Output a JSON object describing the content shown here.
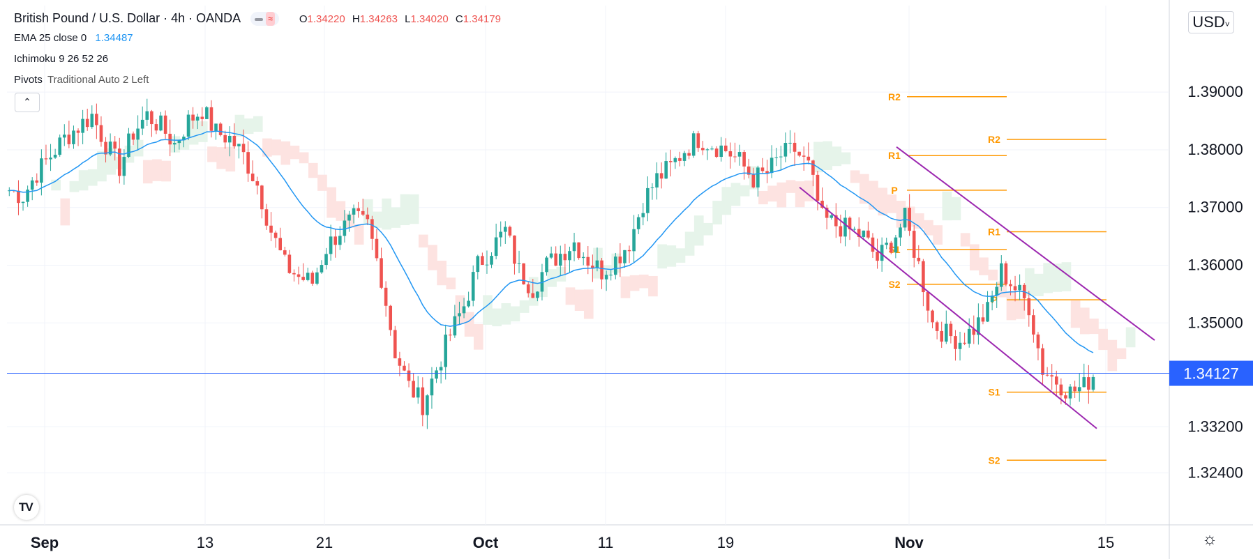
{
  "legend": {
    "symbol": "British Pound / U.S. Dollar",
    "interval": "4h",
    "source": "OANDA",
    "open_label": "O",
    "open": "1.34220",
    "high_label": "H",
    "high": "1.34263",
    "low_label": "L",
    "low": "1.34020",
    "close_label": "C",
    "close": "1.34179",
    "ema_label": "EMA 25 close 0",
    "ema_value": "1.34487",
    "ichimoku_label": "Ichimoku 9 26 52 26",
    "pivots_label": "Pivots",
    "pivots_params": "Traditional Auto 2 Left"
  },
  "controls": {
    "collapse_icon": "chevron-up-icon",
    "currency": "USD",
    "logo": "tradingview-logo",
    "settings_icon": "settings-icon"
  },
  "colors": {
    "up": "#26a69a",
    "down": "#ef5350",
    "ema": "#2196f3",
    "channel": "#9c27b0",
    "pivot": "#ff9800",
    "cloud_bull": "#e6f4ea",
    "cloud_bear": "#fde3e1",
    "price_tag": "#2962ff"
  },
  "chart_data": {
    "type": "candlestick",
    "x_ticks": [
      "Sep",
      "13",
      "21",
      "Oct",
      "11",
      "19",
      "Nov",
      "15"
    ],
    "y_ticks": [
      "1.39000",
      "1.38000",
      "1.37000",
      "1.36000",
      "1.35000",
      "1.33200",
      "1.32400"
    ],
    "current_price": "1.34127",
    "ylim": [
      1.315,
      1.405
    ],
    "ema_last": 1.34487,
    "close_path": [
      1.373,
      1.372,
      1.376,
      1.379,
      1.382,
      1.384,
      1.386,
      1.381,
      1.377,
      1.383,
      1.386,
      1.384,
      1.381,
      1.385,
      1.387,
      1.383,
      1.382,
      1.379,
      1.374,
      1.366,
      1.36,
      1.358,
      1.357,
      1.363,
      1.366,
      1.368,
      1.367,
      1.358,
      1.345,
      1.339,
      1.336,
      1.342,
      1.348,
      1.353,
      1.36,
      1.363,
      1.366,
      1.359,
      1.356,
      1.36,
      1.362,
      1.364,
      1.361,
      1.359,
      1.361,
      1.364,
      1.371,
      1.375,
      1.377,
      1.38,
      1.382,
      1.381,
      1.38,
      1.378,
      1.375,
      1.376,
      1.379,
      1.38,
      1.377,
      1.368,
      1.367,
      1.366,
      1.365,
      1.361,
      1.364,
      1.368,
      1.36,
      1.35,
      1.348,
      1.347,
      1.349,
      1.352,
      1.359,
      1.356,
      1.353,
      1.342,
      1.34,
      1.338,
      1.339,
      1.342
    ],
    "pivots": [
      {
        "label": "R2",
        "value": 1.3892
      },
      {
        "label": "R1",
        "value": 1.379
      },
      {
        "label": "P",
        "value": 1.373
      },
      {
        "label": "S1",
        "value": 1.3627
      },
      {
        "label": "S2",
        "value": 1.3567
      },
      {
        "label": "R2",
        "value": 1.3818
      },
      {
        "label": "R1",
        "value": 1.3658
      },
      {
        "label": "P",
        "value": 1.354
      },
      {
        "label": "S1",
        "value": 1.338
      },
      {
        "label": "S2",
        "value": 1.3262
      }
    ],
    "channel": {
      "upper": [
        1.3805,
        1.347
      ],
      "lower": [
        1.3735,
        1.3317
      ]
    }
  }
}
